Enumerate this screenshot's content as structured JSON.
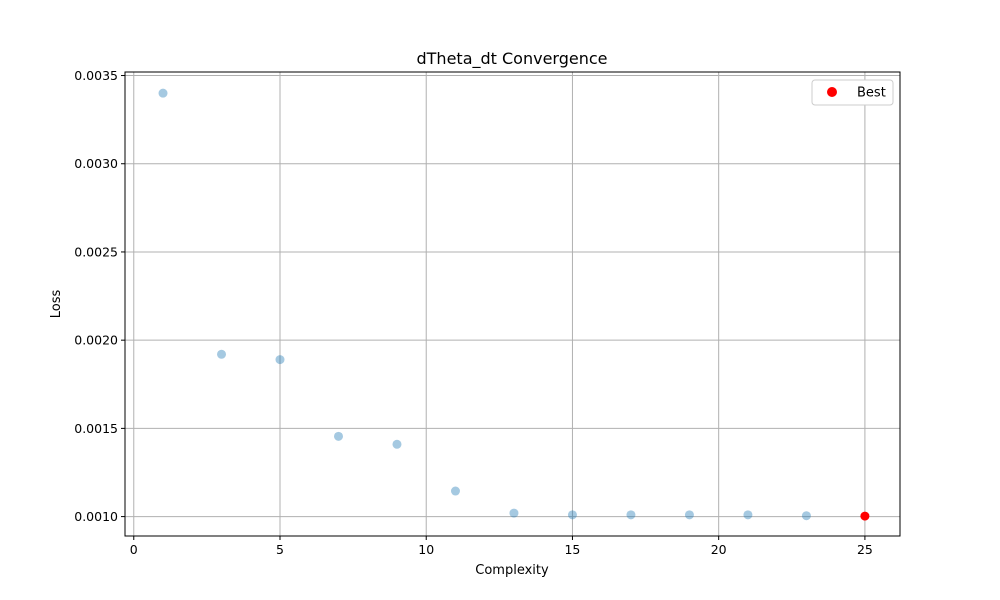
{
  "chart_data": {
    "type": "scatter",
    "title": "dTheta_dt Convergence",
    "xlabel": "Complexity",
    "ylabel": "Loss",
    "xlim": [
      -0.3,
      26.2
    ],
    "ylim": [
      0.00089,
      0.00352
    ],
    "xticks": [
      0,
      5,
      10,
      15,
      20,
      25
    ],
    "xtick_labels": [
      "0",
      "5",
      "10",
      "15",
      "20",
      "25"
    ],
    "yticks": [
      0.001,
      0.0015,
      0.002,
      0.0025,
      0.003,
      0.0035
    ],
    "ytick_labels": [
      "0.0010",
      "0.0015",
      "0.0020",
      "0.0025",
      "0.0030",
      "0.0035"
    ],
    "grid": true,
    "legend_position": "top-right",
    "series": [
      {
        "color": "#1f77b4",
        "alpha": 0.4,
        "x": [
          1,
          3,
          5,
          7,
          9,
          11,
          13,
          15,
          17,
          19,
          21,
          23
        ],
        "y": [
          0.0034,
          0.00192,
          0.00189,
          0.001455,
          0.00141,
          0.001145,
          0.00102,
          0.00101,
          0.00101,
          0.00101,
          0.00101,
          0.001005
        ]
      },
      {
        "name": "Best",
        "color": "#ff0000",
        "alpha": 1.0,
        "x": [
          25
        ],
        "y": [
          0.001003
        ]
      }
    ]
  }
}
